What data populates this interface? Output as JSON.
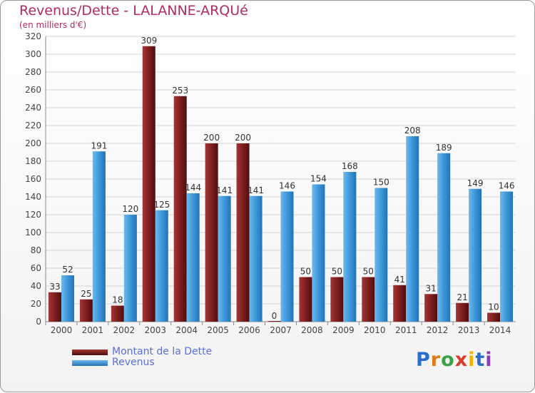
{
  "header": {
    "title": "Revenus/Dette - LALANNE-ARQUé",
    "subtitle": "(en milliers d'€)"
  },
  "logo": {
    "letters": [
      "P",
      "r",
      "o",
      "x",
      "i",
      "t",
      "i"
    ]
  },
  "colors": {
    "debt": "#7a1c1c",
    "revenue": "#3a93d6",
    "grid": "#d4d4d4",
    "title": "#b02a66"
  },
  "chart_data": {
    "type": "bar",
    "title": "Revenus/Dette - LALANNE-ARQUé",
    "subtitle": "(en milliers d'€)",
    "xlabel": "",
    "ylabel": "",
    "ylim": [
      0,
      320
    ],
    "yticks": [
      0,
      20,
      40,
      60,
      80,
      100,
      120,
      140,
      160,
      180,
      200,
      220,
      240,
      260,
      280,
      300,
      320
    ],
    "grid": true,
    "legend_position": "bottom-left",
    "categories": [
      "2000",
      "2001",
      "2002",
      "2003",
      "2004",
      "2005",
      "2006",
      "2007",
      "2008",
      "2009",
      "2010",
      "2011",
      "2012",
      "2013",
      "2014"
    ],
    "series": [
      {
        "name": "Montant de la Dette",
        "values": [
          33,
          25,
          18,
          309,
          253,
          200,
          200,
          0,
          50,
          50,
          50,
          41,
          31,
          21,
          10
        ]
      },
      {
        "name": "Revenus",
        "values": [
          52,
          191,
          120,
          125,
          144,
          141,
          141,
          146,
          154,
          168,
          150,
          208,
          189,
          149,
          146
        ]
      }
    ]
  }
}
